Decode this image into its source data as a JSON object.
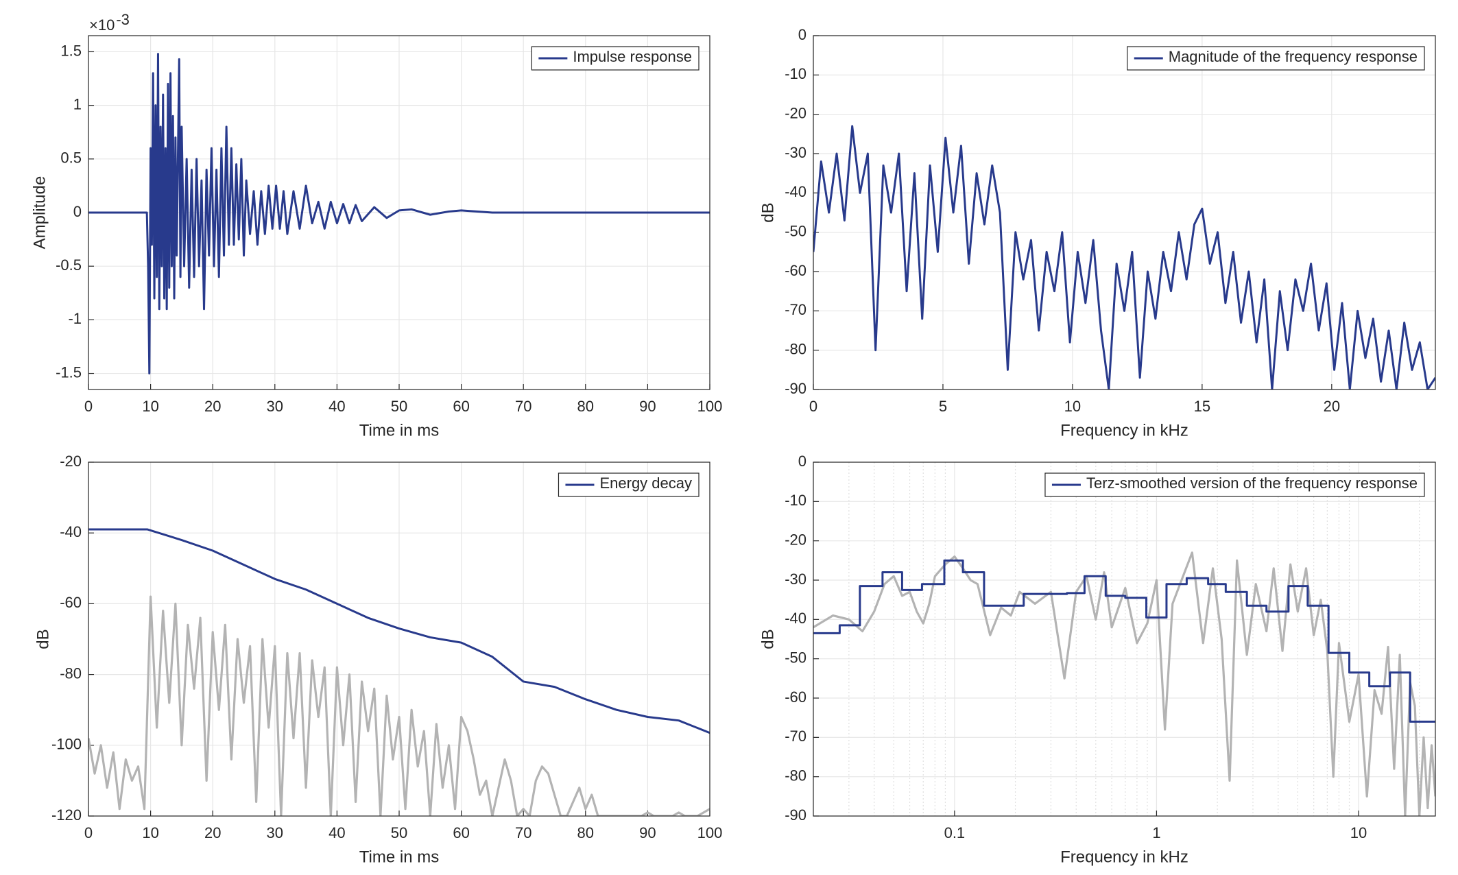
{
  "chart_data": [
    {
      "type": "line",
      "xlabel": "Time in ms",
      "ylabel": "Amplitude",
      "y_exponent": {
        "base": "×10",
        "power": "-3"
      },
      "xlim": [
        0,
        100
      ],
      "xticks": [
        0,
        10,
        20,
        30,
        40,
        50,
        60,
        70,
        80,
        90,
        100
      ],
      "ylim": [
        -1.65,
        1.65
      ],
      "yticks": [
        -1.5,
        -1,
        -0.5,
        0,
        0.5,
        1,
        1.5
      ],
      "grid": true,
      "legend": "northeast",
      "series": [
        {
          "name": "Impulse response",
          "color": "#283a8c",
          "x": [
            0,
            9.4,
            9.6,
            9.8,
            10,
            10.2,
            10.4,
            10.6,
            10.8,
            11,
            11.2,
            11.4,
            11.6,
            11.8,
            12,
            12.2,
            12.4,
            12.6,
            12.8,
            13,
            13.2,
            13.4,
            13.6,
            13.8,
            14,
            14.2,
            14.6,
            14.8,
            15,
            15.4,
            15.8,
            16.2,
            16.6,
            17,
            17.4,
            17.8,
            18.2,
            18.6,
            19,
            19.4,
            19.8,
            20.2,
            20.6,
            21,
            21.4,
            21.8,
            22.2,
            22.6,
            23,
            23.4,
            23.8,
            24.2,
            24.6,
            25,
            25.4,
            26,
            26.6,
            27.2,
            27.8,
            28.4,
            29,
            29.6,
            30.2,
            30.8,
            31.4,
            32,
            33,
            34,
            35,
            36,
            37,
            38,
            39,
            40,
            41,
            42,
            43,
            44,
            46,
            48,
            50,
            52,
            55,
            58,
            60,
            65,
            100
          ],
          "values": [
            0,
            0,
            -0.5,
            -1.5,
            0.6,
            -0.3,
            1.3,
            -0.8,
            1.0,
            -0.6,
            1.48,
            -0.9,
            0.8,
            -0.5,
            1.1,
            -0.8,
            0.6,
            -0.9,
            1.2,
            -0.7,
            1.3,
            -0.5,
            0.9,
            -0.8,
            0.7,
            -0.4,
            1.43,
            -0.6,
            0.8,
            -0.5,
            0.5,
            -0.7,
            0.4,
            -0.6,
            0.5,
            -0.5,
            0.3,
            -0.9,
            0.4,
            -0.4,
            0.6,
            -0.5,
            0.4,
            -0.6,
            0.6,
            -0.4,
            0.8,
            -0.3,
            0.6,
            -0.3,
            0.45,
            -0.25,
            0.5,
            -0.4,
            0.3,
            -0.2,
            0.2,
            -0.3,
            0.2,
            -0.2,
            0.25,
            -0.15,
            0.25,
            -0.15,
            0.2,
            -0.2,
            0.2,
            -0.15,
            0.25,
            -0.1,
            0.1,
            -0.15,
            0.1,
            -0.1,
            0.08,
            -0.1,
            0.07,
            -0.08,
            0.05,
            -0.05,
            0.02,
            0.03,
            -0.02,
            0.01,
            0.02,
            0,
            0
          ]
        }
      ]
    },
    {
      "type": "line",
      "xlabel": "Frequency in kHz",
      "ylabel": "dB",
      "xlim": [
        0,
        24
      ],
      "xticks": [
        0,
        5,
        10,
        15,
        20
      ],
      "ylim": [
        -90,
        0
      ],
      "yticks": [
        -90,
        -80,
        -70,
        -60,
        -50,
        -40,
        -30,
        -20,
        -10,
        0
      ],
      "grid": true,
      "legend": "northeast",
      "series": [
        {
          "name": "Magnitude of the frequency response",
          "color": "#283a8c",
          "x": [
            0,
            0.3,
            0.6,
            0.9,
            1.2,
            1.5,
            1.8,
            2.1,
            2.4,
            2.7,
            3,
            3.3,
            3.6,
            3.9,
            4.2,
            4.5,
            4.8,
            5.1,
            5.4,
            5.7,
            6,
            6.3,
            6.6,
            6.9,
            7.2,
            7.5,
            7.8,
            8.1,
            8.4,
            8.7,
            9,
            9.3,
            9.6,
            9.9,
            10.2,
            10.5,
            10.8,
            11.1,
            11.4,
            11.7,
            12,
            12.3,
            12.6,
            12.9,
            13.2,
            13.5,
            13.8,
            14.1,
            14.4,
            14.7,
            15,
            15.3,
            15.6,
            15.9,
            16.2,
            16.5,
            16.8,
            17.1,
            17.4,
            17.7,
            18,
            18.3,
            18.6,
            18.9,
            19.2,
            19.5,
            19.8,
            20.1,
            20.4,
            20.7,
            21,
            21.3,
            21.6,
            21.9,
            22.2,
            22.5,
            22.8,
            23.1,
            23.4,
            23.7,
            24
          ],
          "values": [
            -55,
            -32,
            -45,
            -30,
            -47,
            -23,
            -40,
            -30,
            -80,
            -33,
            -45,
            -30,
            -65,
            -35,
            -72,
            -33,
            -55,
            -26,
            -45,
            -28,
            -58,
            -35,
            -48,
            -33,
            -45,
            -85,
            -50,
            -62,
            -52,
            -75,
            -55,
            -65,
            -50,
            -78,
            -55,
            -68,
            -52,
            -75,
            -90,
            -58,
            -70,
            -55,
            -87,
            -60,
            -72,
            -55,
            -65,
            -50,
            -62,
            -48,
            -44,
            -58,
            -50,
            -68,
            -55,
            -73,
            -60,
            -78,
            -62,
            -90,
            -65,
            -80,
            -62,
            -70,
            -58,
            -75,
            -63,
            -85,
            -68,
            -90,
            -70,
            -82,
            -72,
            -88,
            -75,
            -90,
            -73,
            -85,
            -78,
            -90,
            -87
          ]
        }
      ]
    },
    {
      "type": "line",
      "xlabel": "Time in ms",
      "ylabel": "dB",
      "xlim": [
        0,
        100
      ],
      "xticks": [
        0,
        10,
        20,
        30,
        40,
        50,
        60,
        70,
        80,
        90,
        100
      ],
      "ylim": [
        -120,
        -20
      ],
      "yticks": [
        -120,
        -100,
        -80,
        -60,
        -40,
        -20
      ],
      "grid": true,
      "legend": "northeast",
      "series": [
        {
          "color": "#b3b3b3",
          "x": [
            0,
            1,
            2,
            3,
            4,
            5,
            6,
            7,
            8,
            9,
            10,
            11,
            12,
            13,
            14,
            15,
            16,
            17,
            18,
            19,
            20,
            21,
            22,
            23,
            24,
            25,
            26,
            27,
            28,
            29,
            30,
            31,
            32,
            33,
            34,
            35,
            36,
            37,
            38,
            39,
            40,
            41,
            42,
            43,
            44,
            45,
            46,
            47,
            48,
            49,
            50,
            51,
            52,
            53,
            54,
            55,
            56,
            57,
            58,
            59,
            60,
            61,
            62,
            63,
            64,
            65,
            66,
            67,
            68,
            69,
            70,
            71,
            72,
            73,
            74,
            75,
            76,
            77,
            78,
            79,
            80,
            81,
            82,
            83,
            84,
            85,
            86,
            87,
            88,
            89,
            90,
            91,
            92,
            93,
            94,
            95,
            96,
            97,
            98,
            99,
            100
          ],
          "values": [
            -98,
            -108,
            -100,
            -112,
            -102,
            -118,
            -104,
            -110,
            -106,
            -118,
            -58,
            -95,
            -62,
            -88,
            -60,
            -100,
            -66,
            -84,
            -64,
            -110,
            -68,
            -90,
            -66,
            -104,
            -70,
            -88,
            -72,
            -116,
            -70,
            -95,
            -72,
            -120,
            -74,
            -98,
            -74,
            -112,
            -76,
            -92,
            -78,
            -120,
            -78,
            -100,
            -80,
            -116,
            -82,
            -96,
            -84,
            -120,
            -86,
            -104,
            -92,
            -118,
            -90,
            -106,
            -96,
            -120,
            -94,
            -112,
            -100,
            -118,
            -92,
            -96,
            -104,
            -114,
            -110,
            -120,
            -112,
            -104,
            -110,
            -120,
            -118,
            -120,
            -110,
            -106,
            -108,
            -114,
            -120,
            -120,
            -116,
            -112,
            -118,
            -114,
            -120,
            -120,
            -120,
            -120,
            -120,
            -120,
            -120,
            -120,
            -119,
            -120,
            -120,
            -120,
            -120,
            -119,
            -120,
            -120,
            -120,
            -119,
            -118
          ]
        },
        {
          "name": "Energy decay",
          "color": "#283a8c",
          "x": [
            0,
            9.5,
            15,
            20,
            25,
            30,
            35,
            40,
            45,
            50,
            55,
            60,
            65,
            70,
            75,
            80,
            85,
            90,
            95,
            100
          ],
          "values": [
            -39,
            -39,
            -42,
            -45,
            -49,
            -53,
            -56,
            -60,
            -64,
            -67,
            -69.5,
            -71,
            -75,
            -82,
            -83.5,
            -87,
            -90,
            -92,
            -93,
            -96.5
          ]
        }
      ]
    },
    {
      "type": "line",
      "xlabel": "Frequency in kHz",
      "ylabel": "dB",
      "xscale": "log",
      "xlim": [
        0.02,
        24
      ],
      "xticks": [
        0.1,
        1,
        10
      ],
      "ylim": [
        -90,
        0
      ],
      "yticks": [
        -90,
        -80,
        -70,
        -60,
        -50,
        -40,
        -30,
        -20,
        -10,
        0
      ],
      "grid": true,
      "legend": "northeast",
      "series": [
        {
          "color": "#b3b3b3",
          "x": [
            0.02,
            0.025,
            0.03,
            0.035,
            0.04,
            0.045,
            0.05,
            0.055,
            0.06,
            0.065,
            0.07,
            0.075,
            0.08,
            0.09,
            0.1,
            0.11,
            0.12,
            0.13,
            0.15,
            0.17,
            0.19,
            0.21,
            0.25,
            0.3,
            0.35,
            0.4,
            0.45,
            0.5,
            0.55,
            0.6,
            0.7,
            0.8,
            0.9,
            1.0,
            1.1,
            1.2,
            1.4,
            1.5,
            1.7,
            1.9,
            2.1,
            2.3,
            2.5,
            2.8,
            3.1,
            3.5,
            3.8,
            4.2,
            4.6,
            5,
            5.5,
            6,
            6.5,
            7,
            7.5,
            8,
            9,
            10,
            11,
            12,
            13,
            14,
            15,
            16,
            17,
            18,
            19,
            20,
            21,
            22,
            23,
            24
          ],
          "values": [
            -42,
            -39,
            -40,
            -43,
            -38,
            -31,
            -29,
            -34,
            -33,
            -38,
            -41,
            -36,
            -29,
            -26,
            -24,
            -27,
            -30,
            -31,
            -44,
            -37,
            -39,
            -33,
            -36,
            -33,
            -55,
            -33,
            -29,
            -40,
            -28,
            -42,
            -32,
            -46,
            -41,
            -30,
            -68,
            -36,
            -27,
            -23,
            -46,
            -27,
            -45,
            -81,
            -25,
            -49,
            -31,
            -43,
            -27,
            -48,
            -26,
            -38,
            -27,
            -44,
            -35,
            -48,
            -80,
            -46,
            -66,
            -54,
            -85,
            -58,
            -64,
            -47,
            -78,
            -49,
            -90,
            -56,
            -62,
            -90,
            -70,
            -88,
            -72,
            -85
          ]
        },
        {
          "name": "Terz-smoothed version of the frequency response",
          "color": "#283a8c",
          "drawstyle": "steps-post",
          "x": [
            0.02,
            0.027,
            0.034,
            0.044,
            0.055,
            0.069,
            0.089,
            0.11,
            0.14,
            0.22,
            0.36,
            0.44,
            0.56,
            0.7,
            0.89,
            1.12,
            1.41,
            1.8,
            2.2,
            2.8,
            3.5,
            4.5,
            5.6,
            7.1,
            9,
            11.3,
            14.3,
            18
          ],
          "values": [
            -43.5,
            -41.5,
            -31.5,
            -28,
            -32.5,
            -31,
            -25,
            -28,
            -36.5,
            -33.5,
            -33.3,
            -29,
            -34,
            -34.5,
            -39.5,
            -31,
            -29.5,
            -31,
            -33,
            -36.5,
            -38,
            -31.5,
            -36.5,
            -48.5,
            -53.5,
            -57,
            -53.5,
            -66
          ]
        }
      ]
    }
  ]
}
